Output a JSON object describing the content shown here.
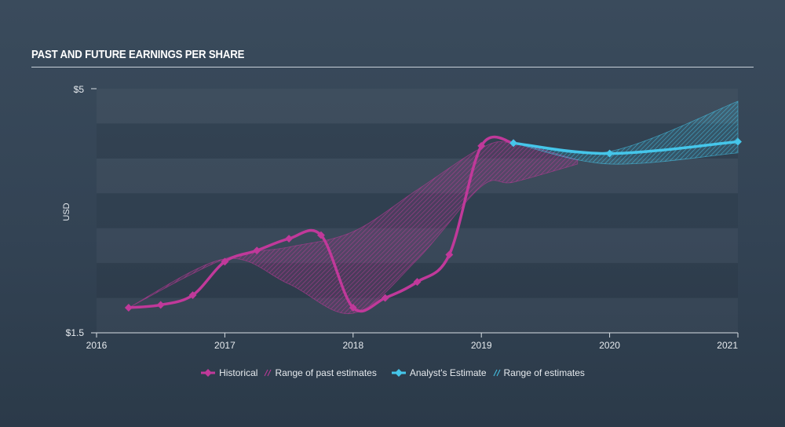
{
  "chart_data": {
    "type": "line",
    "title": "PAST AND FUTURE EARNINGS PER SHARE",
    "ylabel": "USD",
    "ylim": [
      1.5,
      5
    ],
    "xlim": [
      2016,
      2021
    ],
    "y_tick_labels": [
      "$5",
      "$1.5"
    ],
    "x_tick_labels": [
      "2016",
      "2017",
      "2018",
      "2019",
      "2020",
      "2021"
    ],
    "grid": "horizontal bands",
    "legend_position": "bottom-center",
    "series": [
      {
        "name": "Historical",
        "color": "#c0399a",
        "x": [
          2016.25,
          2016.5,
          2016.75,
          2017.0,
          2017.25,
          2017.5,
          2017.75,
          2018.0,
          2018.25,
          2018.5,
          2018.75,
          2019.0,
          2019.25
        ],
        "y": [
          1.86,
          1.9,
          2.04,
          2.52,
          2.68,
          2.85,
          2.9,
          1.86,
          2.0,
          2.23,
          2.62,
          4.18,
          4.22
        ]
      },
      {
        "name": "Analyst's Estimate",
        "color": "#45c6ea",
        "x": [
          2019.25,
          2020.0,
          2021.0
        ],
        "y": [
          4.22,
          4.07,
          4.24
        ]
      }
    ],
    "ranges": [
      {
        "name": "Range of past estimates",
        "color": "#c0399a",
        "x": [
          2016.25,
          2017.0,
          2017.5,
          2018.0,
          2018.5,
          2019.0,
          2019.25,
          2019.75
        ],
        "upper": [
          1.86,
          2.56,
          2.73,
          2.95,
          3.55,
          4.15,
          4.22,
          3.98
        ],
        "lower": [
          1.86,
          2.56,
          2.2,
          1.78,
          2.55,
          3.6,
          3.66,
          3.92
        ]
      },
      {
        "name": "Range of estimates",
        "color": "#45c6ea",
        "x": [
          2019.25,
          2020.0,
          2021.0
        ],
        "upper": [
          4.22,
          4.1,
          4.82
        ],
        "lower": [
          4.22,
          3.92,
          4.08
        ]
      }
    ]
  },
  "legend": {
    "historical": "Historical",
    "past_range": "Range of past estimates",
    "estimate": "Analyst's Estimate",
    "estimate_range": "Range of estimates"
  }
}
